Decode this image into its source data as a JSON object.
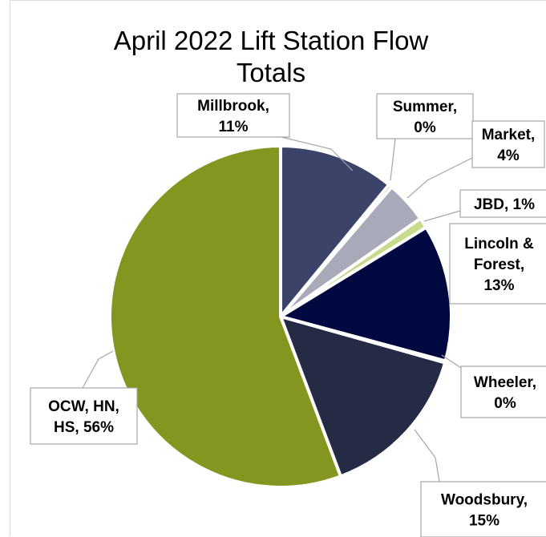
{
  "chart_data": {
    "type": "pie",
    "title": "April 2022 Lift Station Flow Totals",
    "title_lines": [
      "April 2022 Lift Station Flow",
      "Totals"
    ],
    "legend": "none",
    "slices": [
      {
        "name": "Millbrook",
        "value": 11,
        "color": "#3b4468",
        "label_lines": [
          "Millbrook,",
          "11%"
        ]
      },
      {
        "name": "Summer",
        "value": 0,
        "color": "#7f7f8c",
        "label_lines": [
          "Summer,",
          "0%"
        ]
      },
      {
        "name": "Market",
        "value": 4,
        "color": "#a9aab9",
        "label_lines": [
          "Market,",
          "4%"
        ]
      },
      {
        "name": "JBD",
        "value": 1,
        "color": "#c8da8c",
        "label_lines": [
          "JBD, 1%"
        ]
      },
      {
        "name": "Lincoln & Forest",
        "value": 13,
        "color": "#00093f",
        "label_lines": [
          "Lincoln &",
          "Forest,",
          "13%"
        ]
      },
      {
        "name": "Wheeler",
        "value": 0,
        "color": "#444a66",
        "label_lines": [
          "Wheeler,",
          "0%"
        ]
      },
      {
        "name": "Woodsbury",
        "value": 15,
        "color": "#262b45",
        "label_lines": [
          "Woodsbury,",
          "15%"
        ]
      },
      {
        "name": "OCW, HN, HS",
        "value": 56,
        "color": "#84961f",
        "label_lines": [
          "OCW, HN,",
          "HS, 56%"
        ]
      }
    ]
  }
}
